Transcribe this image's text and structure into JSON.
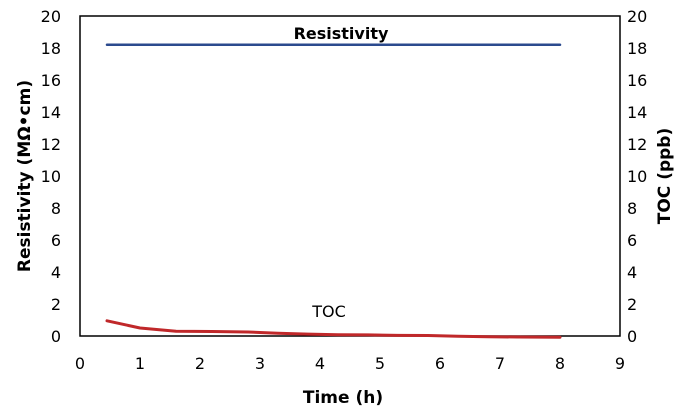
{
  "chart_data": {
    "type": "line",
    "x_axis": {
      "label": "Time (h)",
      "range": [
        0,
        9
      ],
      "ticks": [
        0,
        1,
        2,
        3,
        4,
        5,
        6,
        7,
        8,
        9
      ]
    },
    "y_axis_left": {
      "label": "Resistivity (MΩ•cm)",
      "range": [
        0,
        20
      ],
      "ticks": [
        0,
        2,
        4,
        6,
        8,
        10,
        12,
        14,
        16,
        18,
        20
      ]
    },
    "y_axis_right": {
      "label": "TOC (ppb)",
      "range": [
        0,
        20
      ],
      "ticks": [
        0,
        2,
        4,
        6,
        8,
        10,
        12,
        14,
        16,
        18,
        20
      ]
    },
    "grid": false,
    "series": [
      {
        "name": "Resistivity",
        "axis": "left",
        "color": "#2b4a8e",
        "x": [
          0.45,
          8
        ],
        "y": [
          18.2,
          18.2
        ]
      },
      {
        "name": "TOC",
        "axis": "right",
        "color": "#c0282a",
        "x": [
          0.45,
          1,
          1.6,
          2.2,
          2.8,
          3.3,
          3.8,
          4.3,
          4.8,
          5.3,
          5.8,
          6.3,
          6.8,
          7.3,
          8
        ],
        "y": [
          0.95,
          0.5,
          0.3,
          0.28,
          0.25,
          0.17,
          0.12,
          0.08,
          0.07,
          0.04,
          0.03,
          -0.02,
          -0.05,
          -0.06,
          -0.08
        ]
      }
    ]
  }
}
